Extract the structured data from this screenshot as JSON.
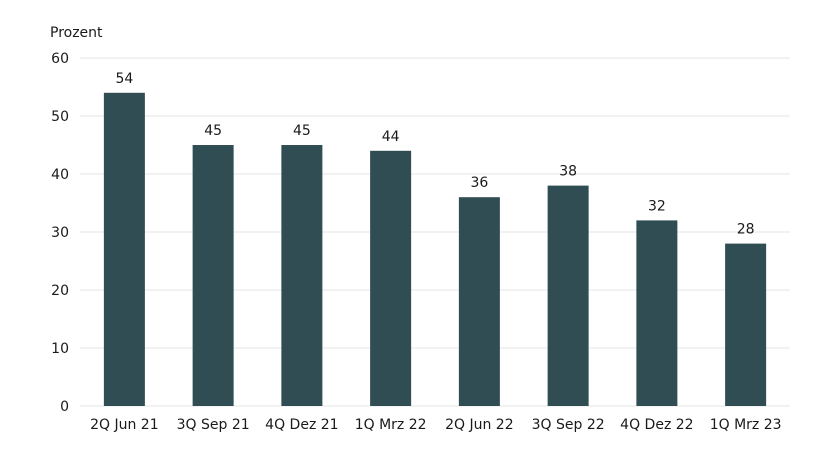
{
  "chart_data": {
    "type": "bar",
    "ylabel": "Prozent",
    "categories": [
      "2Q Jun 21",
      "3Q Sep 21",
      "4Q Dez 21",
      "1Q Mrz 22",
      "2Q Jun 22",
      "3Q Sep 22",
      "4Q Dez 22",
      "1Q Mrz 23"
    ],
    "values": [
      54,
      45,
      45,
      44,
      36,
      38,
      32,
      28
    ],
    "ylim": [
      0,
      60
    ],
    "yticks": [
      0,
      10,
      20,
      30,
      40,
      50,
      60
    ],
    "grid": true,
    "bar_color": "#2f4d52",
    "grid_color": "#e6e6e6"
  }
}
